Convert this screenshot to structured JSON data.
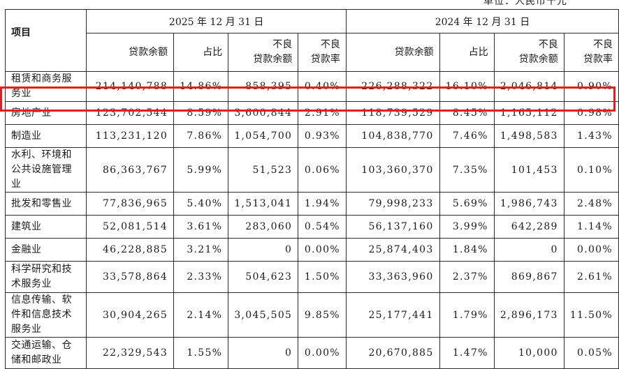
{
  "unit_note": "单位：人民币千元",
  "headers": {
    "item": "项目",
    "period_2025": "2025 年 12 月 31 日",
    "period_2024": "2024 年 12 月 31 日",
    "loan_balance": "贷款余额",
    "share": "占比",
    "npl_balance_l1": "不良",
    "npl_balance_l2": "贷款余额",
    "npl_ratio_l1": "不良",
    "npl_ratio_l2": "贷款率"
  },
  "rows": [
    {
      "label": "租赁和商务服务业",
      "v": [
        "214,140,788",
        "14.86%",
        "858,395",
        "0.40%",
        "226,288,322",
        "16.10%",
        "2,046,814",
        "0.90%"
      ]
    },
    {
      "label": "房地产业",
      "v": [
        "123,702,544",
        "8.59%",
        "3,600,844",
        "2.91%",
        "118,739,529",
        "8.45%",
        "1,165,112",
        "0.98%"
      ]
    },
    {
      "label": "制造业",
      "v": [
        "113,231,120",
        "7.86%",
        "1,054,700",
        "0.93%",
        "104,838,770",
        "7.46%",
        "1,498,583",
        "1.43%"
      ]
    },
    {
      "label": "水利、环境和公共设施管理业",
      "v": [
        "86,363,767",
        "5.99%",
        "51,523",
        "0.06%",
        "103,360,370",
        "7.35%",
        "101,453",
        "0.10%"
      ]
    },
    {
      "label": "批发和零售业",
      "v": [
        "77,836,965",
        "5.40%",
        "1,513,041",
        "1.94%",
        "79,998,233",
        "5.69%",
        "1,986,743",
        "2.48%"
      ]
    },
    {
      "label": "建筑业",
      "v": [
        "52,081,514",
        "3.61%",
        "283,060",
        "0.54%",
        "56,137,160",
        "3.99%",
        "642,289",
        "1.14%"
      ]
    },
    {
      "label": "金融业",
      "v": [
        "46,228,885",
        "3.21%",
        "0",
        "0.00%",
        "25,874,403",
        "1.84%",
        "0",
        "0.00%"
      ]
    },
    {
      "label": "科学研究和技术服务业",
      "v": [
        "33,578,864",
        "2.33%",
        "504,623",
        "1.50%",
        "33,363,960",
        "2.37%",
        "869,867",
        "2.61%"
      ]
    },
    {
      "label": "信息传输、软件和信息技术服务业",
      "v": [
        "30,904,265",
        "2.14%",
        "3,045,505",
        "9.85%",
        "25,177,441",
        "1.79%",
        "2,896,173",
        "11.50%"
      ]
    },
    {
      "label": "交通运输、仓储和邮政业",
      "v": [
        "22,329,543",
        "1.55%",
        "0",
        "0.00%",
        "20,670,885",
        "1.47%",
        "10,000",
        "0.05%"
      ]
    }
  ],
  "highlight_color": "#e0201c"
}
